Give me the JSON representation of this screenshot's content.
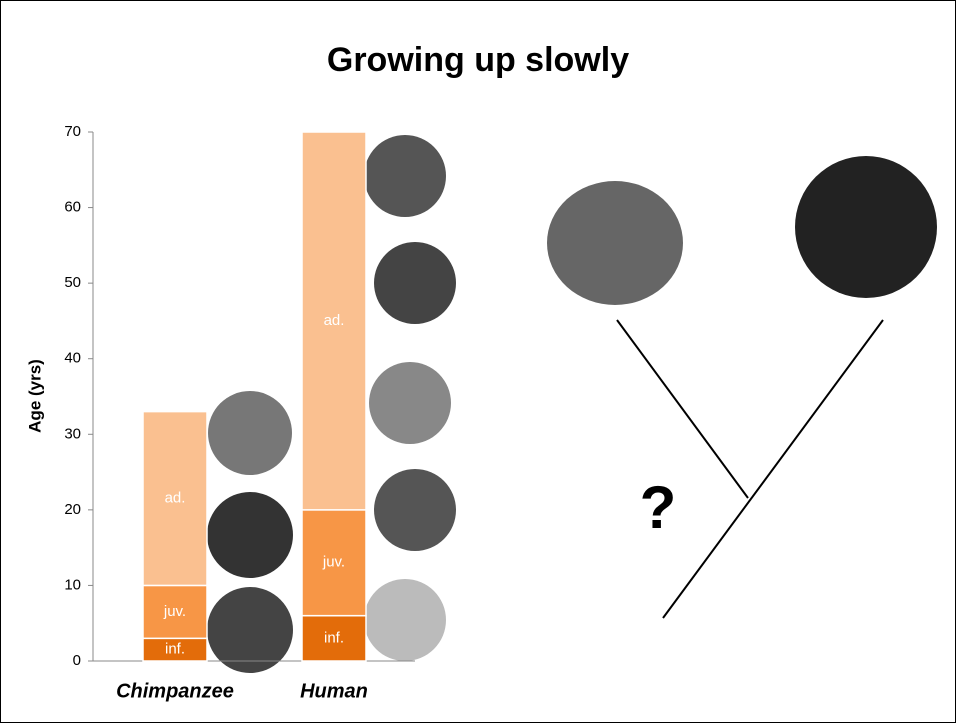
{
  "chart_data": {
    "type": "stacked_bar",
    "title": "Growing up slowly",
    "y_label": "Age (yrs)",
    "categories": [
      "Chimpanzee",
      "Human"
    ],
    "series": [
      {
        "name": "inf.",
        "color": "#e36c0a",
        "values": [
          3,
          6
        ]
      },
      {
        "name": "juv.",
        "color": "#f79646",
        "values": [
          7,
          14
        ]
      },
      {
        "name": "ad.",
        "color": "#fac090",
        "values": [
          23,
          50
        ]
      }
    ],
    "ylim": [
      0,
      70
    ],
    "yticks": [
      0,
      10,
      20,
      30,
      40,
      50,
      60,
      70
    ],
    "annotation": "?"
  }
}
